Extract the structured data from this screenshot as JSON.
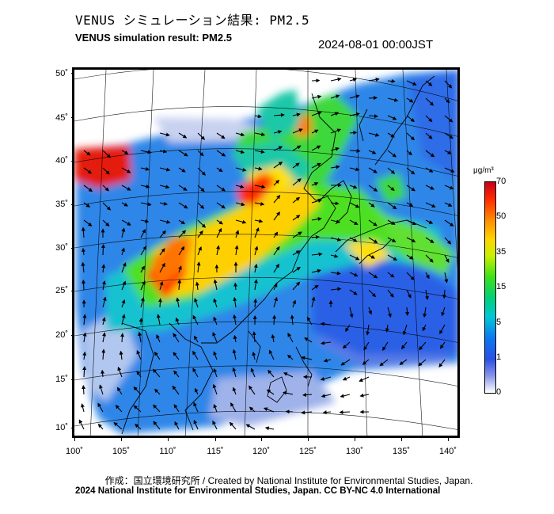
{
  "header": {
    "title_jp": "VENUS シミュレーション結果: PM2.5",
    "title_en": "VENUS simulation result: PM2.5",
    "timestamp": "2024-08-01 00:00JST"
  },
  "map": {
    "lat_labels": [
      "50˚",
      "45˚",
      "40˚",
      "35˚",
      "30˚",
      "25˚",
      "20˚",
      "15˚",
      "10˚"
    ],
    "lon_labels": [
      "100˚",
      "105˚",
      "110˚",
      "115˚",
      "120˚",
      "125˚",
      "130˚",
      "135˚",
      "140˚"
    ],
    "quantity": "PM2.5 concentration with wind vectors",
    "colors": {
      "very_high": "#e8200a",
      "high": "#ffb400",
      "medium": "#4ee020",
      "low": "#1ea0e8",
      "very_low": "#3a6ce6",
      "trace": "#c8d2f0",
      "coast": "#000000",
      "vector": "#000000"
    }
  },
  "colorbar": {
    "unit": "μg/m³",
    "ticks": [
      "70",
      "50",
      "35",
      "15",
      "5",
      "1",
      "0"
    ]
  },
  "footer": {
    "credit": "作成：国立環境研究所 / Created by National Institute for Environmental Studies, Japan.",
    "license": "2024 National Institute for Environmental Studies, Japan. CC BY-NC 4.0 International"
  }
}
